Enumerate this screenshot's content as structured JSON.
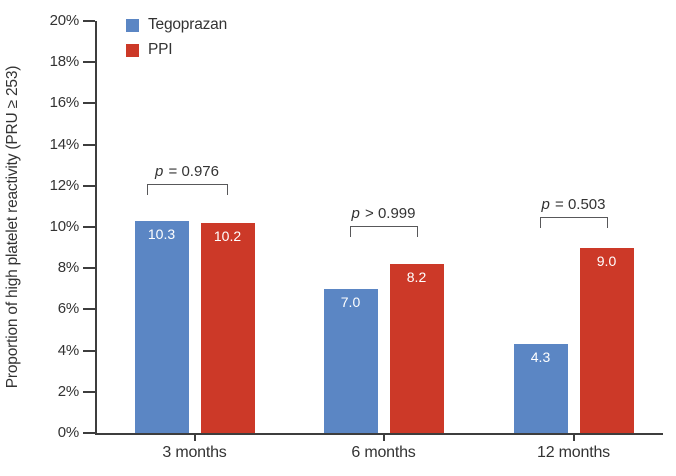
{
  "chart_data": {
    "type": "bar",
    "title": "",
    "categories": [
      "3 months",
      "6 months",
      "12 months"
    ],
    "series": [
      {
        "name": "Tegoprazan",
        "color": "#5B86C4",
        "values": [
          10.3,
          7.0,
          4.3
        ]
      },
      {
        "name": "PPI",
        "color": "#CC3928",
        "values": [
          10.2,
          8.2,
          9.0
        ]
      }
    ],
    "p_values": [
      "p = 0.976",
      "p > 0.999",
      "p = 0.503"
    ],
    "ylabel": "Proportion of high platelet reactivity (PRU ≥ 253)",
    "xlabel": "",
    "ylim": [
      0,
      20
    ],
    "ytick_step": 2,
    "ytick_suffix": "%",
    "grid": false,
    "legend_position": "top-left",
    "value_label_decimals": 1
  },
  "colors": {
    "axis": "#3d3d3d",
    "text": "#333333",
    "bracket": "#58585a",
    "value_label": "#ffffff",
    "background": "#ffffff"
  }
}
